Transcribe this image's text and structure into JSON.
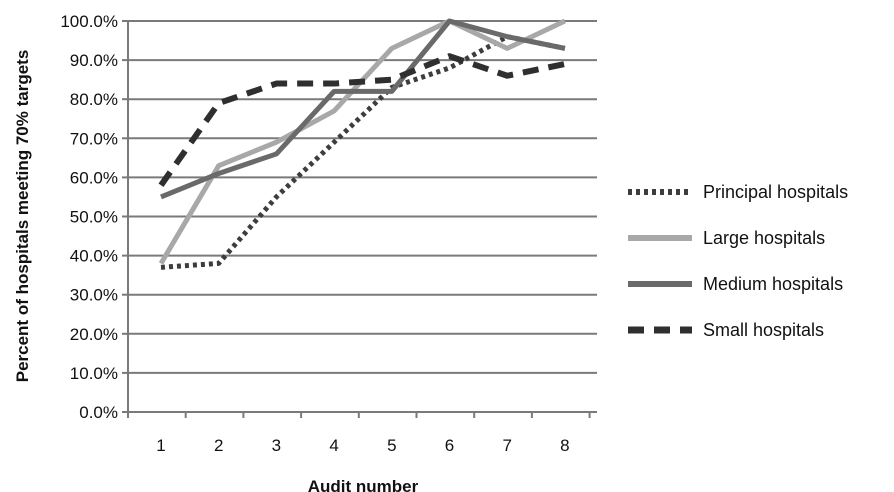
{
  "chart_data": {
    "type": "line",
    "title": "",
    "xlabel": "Audit number",
    "ylabel": "Percent of hospitals meeting 70% targets",
    "x": [
      1,
      2,
      3,
      4,
      5,
      6,
      7,
      8
    ],
    "x_tick_labels": [
      "1",
      "2",
      "3",
      "4",
      "5",
      "6",
      "7",
      "8"
    ],
    "ylim": [
      0,
      100
    ],
    "y_tick_labels": [
      "0.0%",
      "10.0%",
      "20.0%",
      "30.0%",
      "40.0%",
      "50.0%",
      "60.0%",
      "70.0%",
      "80.0%",
      "90.0%",
      "100.0%"
    ],
    "grid": "horizontal",
    "legend_position": "right",
    "series": [
      {
        "name": "Principal hospitals",
        "values": [
          37,
          38,
          55,
          69,
          83,
          88,
          96,
          93
        ],
        "color": "#3d3d3d",
        "style": "dotted"
      },
      {
        "name": "Large hospitals",
        "values": [
          38,
          63,
          69,
          77,
          93,
          100,
          93,
          100
        ],
        "color": "#a8a8a8",
        "style": "solid"
      },
      {
        "name": "Medium hospitals",
        "values": [
          55,
          61,
          66,
          82,
          82,
          100,
          96,
          93
        ],
        "color": "#6a6a6a",
        "style": "solid"
      },
      {
        "name": "Small hospitals",
        "values": [
          58,
          79,
          84,
          84,
          85,
          91,
          86,
          89
        ],
        "color": "#2f2f2f",
        "style": "dashed"
      }
    ]
  }
}
